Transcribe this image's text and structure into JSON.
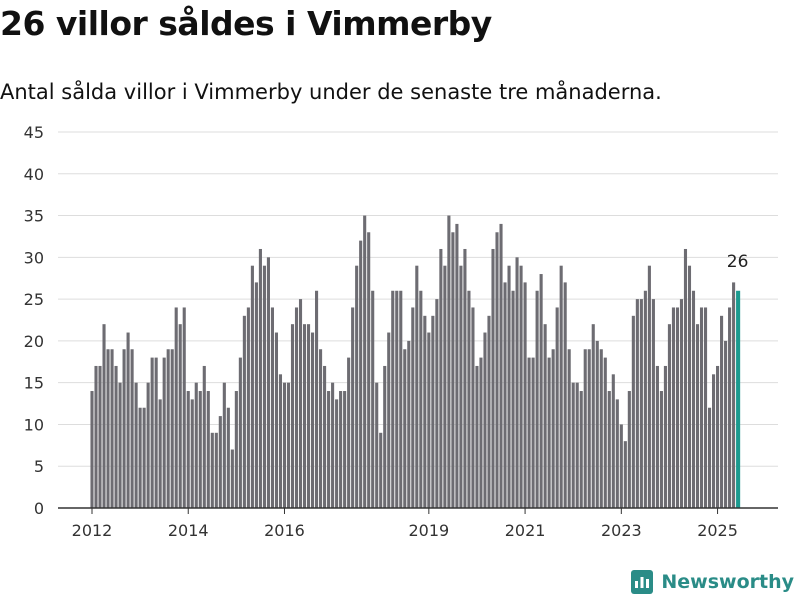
{
  "header": {
    "title": "26 villor såldes i Vimmerby",
    "subtitle": "Antal sålda villor i Vimmerby under de senaste tre månaderna."
  },
  "brand": {
    "name": "Newsworthy",
    "color": "#2a8c87"
  },
  "colors": {
    "bar": "#6d6c72",
    "highlight": "#1b9a8f",
    "grid": "#dddddd",
    "axis": "#333333"
  },
  "chart_data": {
    "type": "bar",
    "title": "26 villor såldes i Vimmerby",
    "subtitle": "Antal sålda villor i Vimmerby under de senaste tre månaderna.",
    "xlabel": "",
    "ylabel": "",
    "ylim": [
      0,
      45
    ],
    "yticks": [
      0,
      5,
      10,
      15,
      20,
      25,
      30,
      35,
      40,
      45
    ],
    "xticks": [
      {
        "label": "2012",
        "index": 0
      },
      {
        "label": "2014",
        "index": 24
      },
      {
        "label": "2016",
        "index": 48
      },
      {
        "label": "2019",
        "index": 84
      },
      {
        "label": "2021",
        "index": 108
      },
      {
        "label": "2023",
        "index": 132
      },
      {
        "label": "2025",
        "index": 156
      }
    ],
    "start_period": "2012-01",
    "period": "3 months rolling, monthly",
    "grid": true,
    "highlight_label": "26",
    "values": [
      14,
      17,
      17,
      22,
      19,
      19,
      17,
      15,
      19,
      21,
      19,
      15,
      12,
      12,
      15,
      18,
      18,
      13,
      18,
      19,
      19,
      24,
      22,
      24,
      14,
      13,
      15,
      14,
      17,
      14,
      9,
      9,
      11,
      15,
      12,
      7,
      14,
      18,
      23,
      24,
      29,
      27,
      31,
      29,
      30,
      24,
      21,
      16,
      15,
      15,
      22,
      24,
      25,
      22,
      22,
      21,
      26,
      19,
      17,
      14,
      15,
      13,
      14,
      14,
      18,
      24,
      29,
      32,
      35,
      33,
      26,
      15,
      9,
      17,
      21,
      26,
      26,
      26,
      19,
      20,
      24,
      29,
      26,
      23,
      21,
      23,
      25,
      31,
      29,
      35,
      33,
      34,
      29,
      31,
      26,
      24,
      17,
      18,
      21,
      23,
      31,
      33,
      34,
      27,
      29,
      26,
      30,
      29,
      27,
      18,
      18,
      26,
      28,
      22,
      18,
      19,
      24,
      29,
      27,
      19,
      15,
      15,
      14,
      19,
      19,
      22,
      20,
      19,
      18,
      14,
      16,
      13,
      10,
      8,
      14,
      23,
      25,
      25,
      26,
      29,
      25,
      17,
      14,
      17,
      22,
      24,
      24,
      25,
      31,
      29,
      26,
      22,
      24,
      24,
      12,
      16,
      17,
      23,
      20,
      24,
      27,
      26
    ]
  }
}
